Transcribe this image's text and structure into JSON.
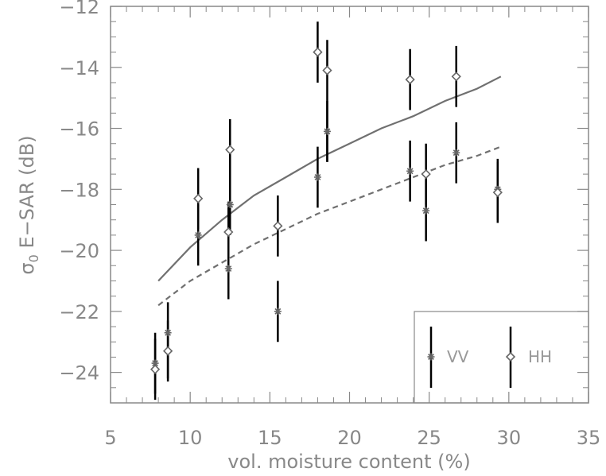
{
  "chart_data": {
    "type": "scatter",
    "xlabel": "vol. moisture content (%)",
    "ylabel_main": "σ",
    "ylabel_sub": "0",
    "ylabel_rest": " E−SAR (dB)",
    "xlim": [
      5,
      35
    ],
    "ylim": [
      -25,
      -12
    ],
    "xticks": [
      5,
      10,
      15,
      20,
      25,
      30,
      35
    ],
    "xtick_labels": [
      "5",
      "10",
      "15",
      "20",
      "25",
      "30",
      "35"
    ],
    "yticks": [
      -24,
      -22,
      -20,
      -18,
      -16,
      -14,
      -12
    ],
    "ytick_labels": [
      "−24",
      "−22",
      "−20",
      "−18",
      "−16",
      "−14",
      "−12"
    ],
    "grid": false,
    "legend_position": "bottom-right",
    "series": [
      {
        "name": "VV",
        "marker": "asterisk",
        "points": [
          {
            "x": 7.8,
            "y": -23.7,
            "lo": -24.7,
            "hi": -22.7
          },
          {
            "x": 8.6,
            "y": -22.7,
            "lo": -24.2,
            "hi": -21.7
          },
          {
            "x": 10.5,
            "y": -19.5,
            "lo": -20.5,
            "hi": -18.5
          },
          {
            "x": 12.4,
            "y": -20.6,
            "lo": -21.6,
            "hi": -19.6
          },
          {
            "x": 12.5,
            "y": -18.5,
            "lo": -19.5,
            "hi": -17.5
          },
          {
            "x": 15.5,
            "y": -22.0,
            "lo": -23.0,
            "hi": -21.0
          },
          {
            "x": 18.0,
            "y": -17.6,
            "lo": -18.6,
            "hi": -16.6
          },
          {
            "x": 18.6,
            "y": -16.1,
            "lo": -17.1,
            "hi": -15.1
          },
          {
            "x": 23.8,
            "y": -17.4,
            "lo": -18.4,
            "hi": -16.4
          },
          {
            "x": 24.8,
            "y": -18.7,
            "lo": -19.7,
            "hi": -17.7
          },
          {
            "x": 26.7,
            "y": -16.8,
            "lo": -17.8,
            "hi": -15.8
          },
          {
            "x": 29.3,
            "y": -18.0,
            "lo": -19.0,
            "hi": -17.0
          }
        ]
      },
      {
        "name": "HH",
        "marker": "diamond",
        "points": [
          {
            "x": 7.8,
            "y": -23.9,
            "lo": -24.9,
            "hi": -22.9
          },
          {
            "x": 8.6,
            "y": -23.3,
            "lo": -24.3,
            "hi": -22.3
          },
          {
            "x": 10.5,
            "y": -18.3,
            "lo": -19.3,
            "hi": -17.3
          },
          {
            "x": 12.4,
            "y": -19.4,
            "lo": -20.4,
            "hi": -18.4
          },
          {
            "x": 12.5,
            "y": -16.7,
            "lo": -17.7,
            "hi": -15.7
          },
          {
            "x": 15.5,
            "y": -19.2,
            "lo": -20.2,
            "hi": -18.2
          },
          {
            "x": 18.0,
            "y": -13.5,
            "lo": -14.5,
            "hi": -12.5
          },
          {
            "x": 18.6,
            "y": -14.1,
            "lo": -17.1,
            "hi": -13.1
          },
          {
            "x": 23.8,
            "y": -14.4,
            "lo": -15.4,
            "hi": -13.4
          },
          {
            "x": 24.8,
            "y": -17.5,
            "lo": -18.5,
            "hi": -16.5
          },
          {
            "x": 26.7,
            "y": -14.3,
            "lo": -15.3,
            "hi": -13.3
          },
          {
            "x": 29.3,
            "y": -18.1,
            "lo": -19.1,
            "hi": -17.1
          }
        ]
      }
    ],
    "fits": [
      {
        "series": "HH",
        "style": "solid",
        "x": [
          8,
          10,
          12,
          14,
          16,
          18,
          20,
          22,
          24,
          26,
          28,
          29.5
        ],
        "y": [
          -21.0,
          -19.9,
          -19.0,
          -18.2,
          -17.6,
          -17.0,
          -16.5,
          -16.0,
          -15.6,
          -15.1,
          -14.7,
          -14.3
        ]
      },
      {
        "series": "VV",
        "style": "dashed",
        "x": [
          8,
          10,
          12,
          14,
          16,
          18,
          20,
          22,
          24,
          26,
          28,
          29.5
        ],
        "y": [
          -21.8,
          -21.0,
          -20.4,
          -19.8,
          -19.3,
          -18.8,
          -18.4,
          -18.0,
          -17.6,
          -17.2,
          -16.9,
          -16.6
        ]
      }
    ],
    "colors": {
      "axis": "#888888",
      "errorbar": "#000000",
      "marker": "#666666",
      "fit": "#707070"
    }
  }
}
